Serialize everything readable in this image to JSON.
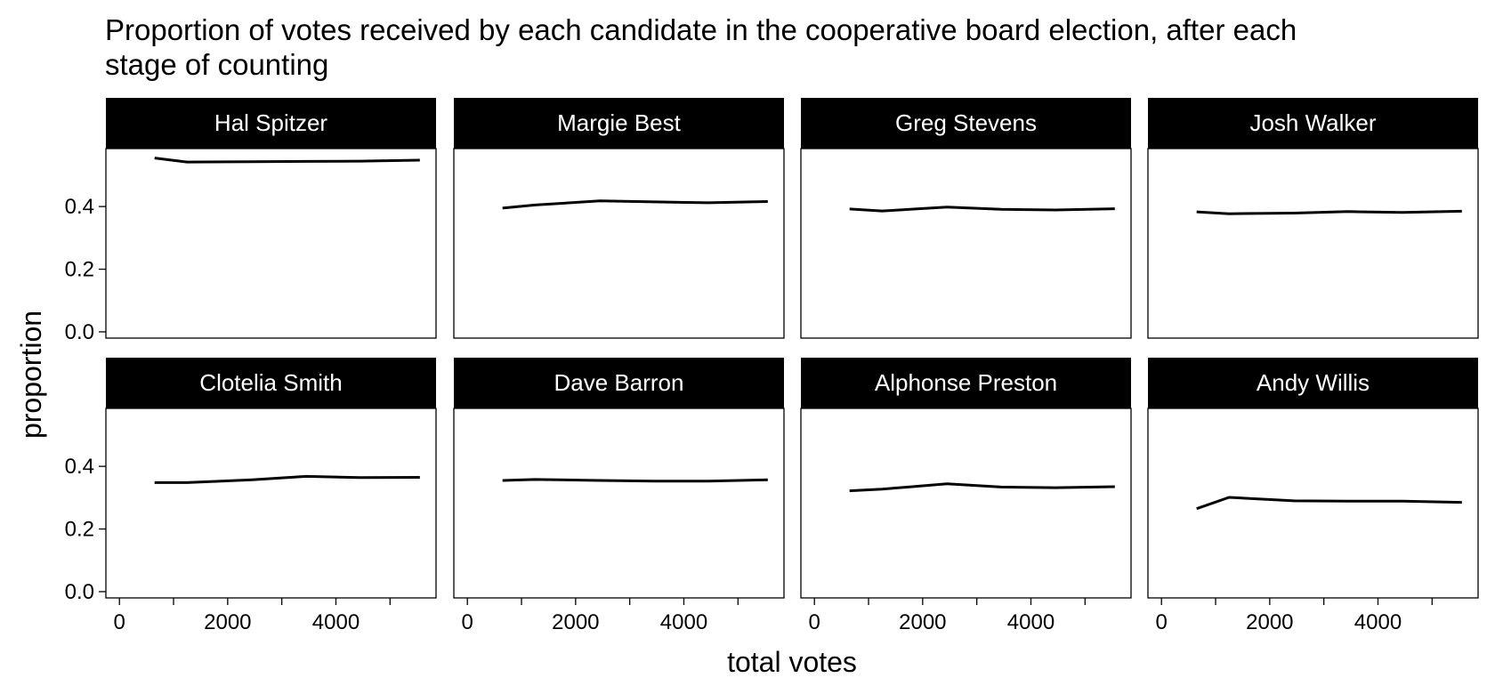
{
  "chart_data": {
    "type": "line",
    "title": "Proportion of votes received by each candidate in the cooperative board election, after each stage of counting",
    "title_lines": [
      "Proportion of votes received by each candidate in the cooperative board election, after each",
      "stage of counting"
    ],
    "xlabel": "total votes",
    "ylabel": "proportion",
    "xlim": [
      -250,
      5850
    ],
    "ylim": [
      -0.02,
      0.585
    ],
    "x_ticks": [
      0,
      1000,
      2000,
      3000,
      4000,
      5000
    ],
    "x_tick_labels": [
      "0",
      "",
      "2000",
      "",
      "4000",
      ""
    ],
    "y_ticks": [
      0.0,
      0.2,
      0.4
    ],
    "y_tick_labels": [
      "0.0",
      "0.2",
      "0.4"
    ],
    "grid": false,
    "layout": "facet grid, 2 rows x 4 columns",
    "line_color": "#000000",
    "strip_color": "#000000",
    "x": [
      650,
      1250,
      2450,
      3450,
      4450,
      5550
    ],
    "series": [
      {
        "name": "Hal Spitzer",
        "values": [
          0.555,
          0.542,
          0.543,
          0.544,
          0.545,
          0.548
        ]
      },
      {
        "name": "Margie Best",
        "values": [
          0.395,
          0.405,
          0.418,
          0.415,
          0.412,
          0.416
        ]
      },
      {
        "name": "Greg Stevens",
        "values": [
          0.392,
          0.386,
          0.398,
          0.391,
          0.389,
          0.393
        ]
      },
      {
        "name": "Josh Walker",
        "values": [
          0.383,
          0.377,
          0.379,
          0.384,
          0.381,
          0.385
        ]
      },
      {
        "name": "Clotelia Smith",
        "values": [
          0.348,
          0.348,
          0.357,
          0.368,
          0.364,
          0.365
        ]
      },
      {
        "name": "Dave Barron",
        "values": [
          0.355,
          0.358,
          0.355,
          0.353,
          0.353,
          0.357
        ]
      },
      {
        "name": "Alphonse Preston",
        "values": [
          0.322,
          0.327,
          0.344,
          0.334,
          0.332,
          0.335
        ]
      },
      {
        "name": "Andy Willis",
        "values": [
          0.265,
          0.301,
          0.29,
          0.289,
          0.289,
          0.285
        ]
      }
    ]
  }
}
